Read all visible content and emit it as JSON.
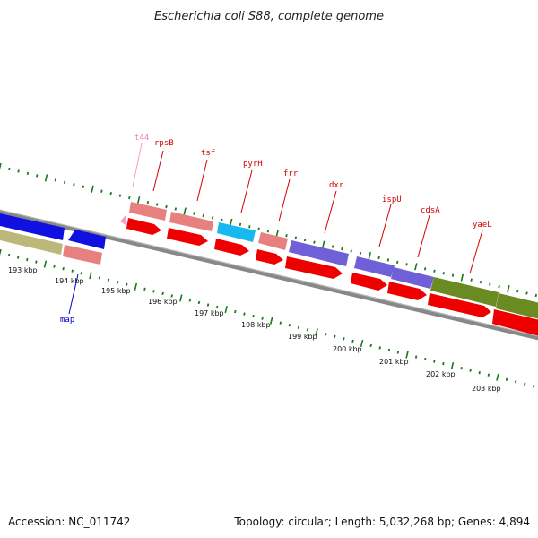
{
  "title": "Escherichia coli S88, complete genome",
  "accession": "Accession: NC_011742",
  "summary": "Topology: circular; Length: 5,032,268 bp; Genes: 4,894",
  "colors": {
    "label_red": "#d40000",
    "label_blue": "#0000cc",
    "label_pink": "#f080b0",
    "tick_green": "#1a7a1a",
    "backbone": "#777777"
  },
  "tick_labels": [
    "193 kbp",
    "194 kbp",
    "195 kbp",
    "196 kbp",
    "197 kbp",
    "198 kbp",
    "199 kbp",
    "200 kbp",
    "201 kbp",
    "202 kbp",
    "203 kbp"
  ],
  "gene_labels": [
    {
      "text": "t44",
      "color": "pink"
    },
    {
      "text": "rpsB",
      "color": "red"
    },
    {
      "text": "tsf",
      "color": "red"
    },
    {
      "text": "pyrH",
      "color": "red"
    },
    {
      "text": "frr",
      "color": "red"
    },
    {
      "text": "dxr",
      "color": "red"
    },
    {
      "text": "ispU",
      "color": "red"
    },
    {
      "text": "cdsA",
      "color": "red"
    },
    {
      "text": "yaeL",
      "color": "red"
    },
    {
      "text": "map",
      "color": "blue"
    }
  ]
}
